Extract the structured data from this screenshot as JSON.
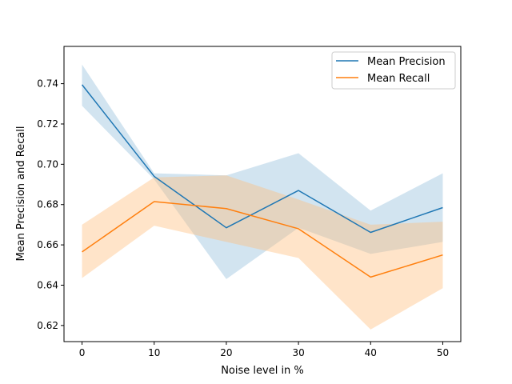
{
  "chart_data": {
    "type": "line",
    "xlabel": "Noise level in %",
    "ylabel": "Mean Precision and Recall",
    "x": [
      0,
      10,
      20,
      30,
      40,
      50
    ],
    "xlim": [
      -2.5,
      52.5
    ],
    "ylim": [
      0.612,
      0.7585
    ],
    "xticks": [
      0,
      10,
      20,
      30,
      40,
      50
    ],
    "yticks": [
      0.62,
      0.64,
      0.66,
      0.68,
      0.7,
      0.72,
      0.74
    ],
    "ytick_labels": [
      "0.62",
      "0.64",
      "0.66",
      "0.68",
      "0.70",
      "0.72",
      "0.74"
    ],
    "grid": false,
    "legend_position": "top-right",
    "series": [
      {
        "name": "Mean Precision",
        "color": "#1f77b4",
        "band_color": "#1f77b4",
        "values": [
          0.7395,
          0.694,
          0.6685,
          0.687,
          0.6662,
          0.6785
        ],
        "lower": [
          0.729,
          0.6925,
          0.643,
          0.6685,
          0.6555,
          0.6615
        ],
        "upper": [
          0.7495,
          0.6955,
          0.6945,
          0.7055,
          0.677,
          0.6955
        ]
      },
      {
        "name": "Mean Recall",
        "color": "#ff7f0e",
        "band_color": "#ffbb78",
        "values": [
          0.6565,
          0.6815,
          0.678,
          0.668,
          0.644,
          0.655
        ],
        "lower": [
          0.6435,
          0.6695,
          0.6615,
          0.6535,
          0.618,
          0.6385
        ],
        "upper": [
          0.67,
          0.6935,
          0.6945,
          0.6825,
          0.67,
          0.6715
        ]
      }
    ]
  }
}
